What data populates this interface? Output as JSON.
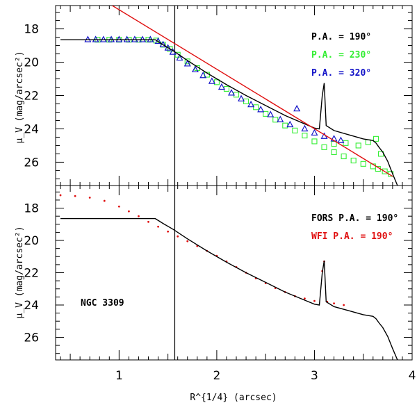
{
  "chart_data": {
    "type": "scatter",
    "xlabel": "R^{1/4} (arcsec)",
    "xlim": [
      0.35,
      4.0
    ],
    "xticks": [
      1,
      2,
      3,
      4
    ],
    "vertical_line_x": 1.57,
    "panels": [
      {
        "name": "top",
        "ylabel": "μ_V (mag/arcsec²)",
        "ylim": [
          27.4,
          16.6
        ],
        "yticks": [
          18,
          20,
          22,
          24,
          26
        ],
        "legend": [
          {
            "text": "P.A. = 190°",
            "color": "#000000"
          },
          {
            "text": "P.A. = 230°",
            "color": "#33ee33"
          },
          {
            "text": "P.A. = 320°",
            "color": "#1414c8"
          }
        ],
        "series": [
          {
            "name": "P.A. = 190°",
            "kind": "line",
            "color": "#000000",
            "x": [
              0.4,
              1.37,
              1.45,
              1.55,
              1.7,
              1.9,
              2.1,
              2.3,
              2.5,
              2.7,
              2.9,
              3.0,
              3.05,
              3.08,
              3.1,
              3.12,
              3.2,
              3.35,
              3.5,
              3.6,
              3.63,
              3.66,
              3.7,
              3.75,
              3.8,
              3.85
            ],
            "y": [
              18.65,
              18.65,
              18.95,
              19.3,
              19.9,
              20.65,
              21.35,
              22.0,
              22.6,
              23.2,
              23.7,
              23.95,
              24.0,
              22.0,
              21.25,
              23.8,
              24.1,
              24.35,
              24.6,
              24.7,
              24.85,
              25.1,
              25.4,
              25.95,
              26.7,
              27.4
            ]
          },
          {
            "name": "P.A. = 230°",
            "kind": "squares",
            "color": "#33ee33",
            "x": [
              0.78,
              0.9,
              1.0,
              1.1,
              1.2,
              1.3,
              1.38,
              1.45,
              1.52,
              1.6,
              1.7,
              1.8,
              1.9,
              2.0,
              2.1,
              2.2,
              2.3,
              2.4,
              2.5,
              2.6,
              2.7,
              2.8,
              2.9,
              3.0,
              3.1,
              3.2,
              3.3,
              3.4,
              3.5,
              3.6,
              3.65,
              3.72,
              3.78,
              3.2,
              3.32,
              3.45,
              3.55,
              3.63,
              3.68
            ],
            "y": [
              18.65,
              18.65,
              18.65,
              18.65,
              18.65,
              18.65,
              18.7,
              18.95,
              19.2,
              19.55,
              19.95,
              20.35,
              20.75,
              21.2,
              21.6,
              21.95,
              22.35,
              22.7,
              23.1,
              23.45,
              23.8,
              24.1,
              24.4,
              24.75,
              25.1,
              25.4,
              25.65,
              25.9,
              26.1,
              26.25,
              26.4,
              26.55,
              26.7,
              24.9,
              24.85,
              25.0,
              24.8,
              24.6,
              25.5
            ]
          },
          {
            "name": "P.A. = 320°",
            "kind": "triangles",
            "color": "#1414c8",
            "x": [
              0.68,
              0.76,
              0.84,
              0.92,
              1.0,
              1.08,
              1.16,
              1.24,
              1.32,
              1.4,
              1.45,
              1.5,
              1.55,
              1.62,
              1.7,
              1.78,
              1.86,
              1.95,
              2.05,
              2.15,
              2.25,
              2.35,
              2.45,
              2.55,
              2.65,
              2.75,
              2.82,
              2.9,
              3.0,
              3.1,
              3.2,
              3.27
            ],
            "y": [
              18.65,
              18.65,
              18.65,
              18.65,
              18.65,
              18.65,
              18.65,
              18.65,
              18.65,
              18.75,
              18.95,
              19.15,
              19.4,
              19.75,
              20.1,
              20.45,
              20.8,
              21.15,
              21.5,
              21.85,
              22.2,
              22.55,
              22.85,
              23.15,
              23.45,
              23.75,
              22.8,
              24.0,
              24.25,
              24.45,
              24.6,
              24.7
            ]
          },
          {
            "name": "fit",
            "kind": "line",
            "color": "#e01010",
            "x": [
              0.93,
              3.8
            ],
            "y": [
              16.6,
              26.85
            ]
          }
        ]
      },
      {
        "name": "bottom",
        "ylabel": "μ_V (mag/arcsec²)",
        "ylim": [
          27.4,
          16.6
        ],
        "yticks": [
          18,
          20,
          22,
          24,
          26
        ],
        "annotation": "NGC 3309",
        "legend": [
          {
            "text": "FORS P.A. = 190°",
            "color": "#000000"
          },
          {
            "text": "WFI P.A. = 190°",
            "color": "#e01010"
          }
        ],
        "series": [
          {
            "name": "FORS P.A. = 190°",
            "kind": "line",
            "color": "#000000",
            "x": [
              0.4,
              1.37,
              1.45,
              1.55,
              1.7,
              1.9,
              2.1,
              2.3,
              2.5,
              2.7,
              2.9,
              3.0,
              3.05,
              3.08,
              3.1,
              3.12,
              3.2,
              3.35,
              3.5,
              3.6,
              3.63,
              3.66,
              3.7,
              3.75,
              3.8,
              3.85
            ],
            "y": [
              18.65,
              18.65,
              18.95,
              19.3,
              19.9,
              20.65,
              21.35,
              22.0,
              22.6,
              23.2,
              23.7,
              23.95,
              24.0,
              22.0,
              21.25,
              23.8,
              24.1,
              24.35,
              24.6,
              24.7,
              24.85,
              25.1,
              25.4,
              25.95,
              26.7,
              27.4
            ]
          },
          {
            "name": "WFI P.A. = 190°",
            "kind": "dots",
            "color": "#e01010",
            "x": [
              0.4,
              0.55,
              0.7,
              0.85,
              1.0,
              1.1,
              1.2,
              1.3,
              1.4,
              1.5,
              1.6,
              1.7,
              1.8,
              1.9,
              2.0,
              2.1,
              2.2,
              2.3,
              2.4,
              2.5,
              2.6,
              2.7,
              2.8,
              2.9,
              3.0,
              3.08,
              3.1,
              3.13,
              3.2,
              3.3
            ],
            "y": [
              17.2,
              17.25,
              17.35,
              17.55,
              17.9,
              18.2,
              18.5,
              18.85,
              19.15,
              19.45,
              19.75,
              20.05,
              20.35,
              20.65,
              20.95,
              21.3,
              21.65,
              22.0,
              22.35,
              22.65,
              22.95,
              23.2,
              23.45,
              23.6,
              23.75,
              21.9,
              21.3,
              23.8,
              23.9,
              24.0
            ]
          }
        ]
      }
    ]
  }
}
